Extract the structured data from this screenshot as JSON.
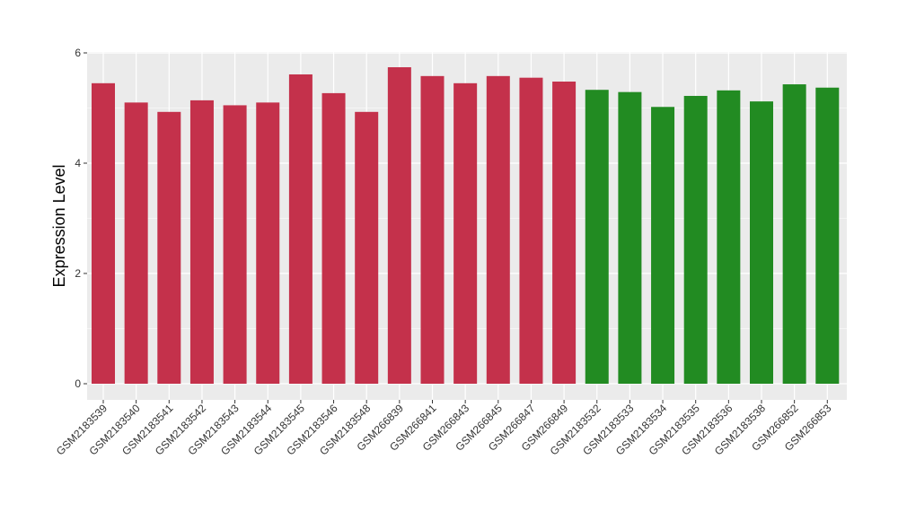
{
  "chart_data": {
    "type": "bar",
    "title": "",
    "xlabel": "",
    "ylabel": "Expression Level",
    "ylim": [
      0,
      6.05
    ],
    "yticks": [
      0,
      2,
      4,
      6
    ],
    "grid": true,
    "colors": {
      "group_a": "#C4314B",
      "group_b": "#228B22",
      "panel_bg": "#EBEBEB",
      "grid": "#FFFFFF"
    },
    "categories": [
      "GSM2183539",
      "GSM2183540",
      "GSM2183541",
      "GSM2183542",
      "GSM2183543",
      "GSM2183544",
      "GSM2183545",
      "GSM2183546",
      "GSM2183548",
      "GSM266839",
      "GSM266841",
      "GSM266843",
      "GSM266845",
      "GSM266847",
      "GSM266849",
      "GSM2183532",
      "GSM2183533",
      "GSM2183534",
      "GSM2183535",
      "GSM2183536",
      "GSM2183538",
      "GSM266852",
      "GSM266853"
    ],
    "values": [
      5.45,
      5.1,
      4.93,
      5.14,
      5.05,
      5.1,
      5.61,
      5.27,
      4.93,
      5.74,
      5.58,
      5.45,
      5.58,
      5.55,
      5.48,
      5.33,
      5.29,
      5.02,
      5.22,
      5.32,
      5.12,
      5.43,
      5.37
    ],
    "groups": [
      "a",
      "a",
      "a",
      "a",
      "a",
      "a",
      "a",
      "a",
      "a",
      "a",
      "a",
      "a",
      "a",
      "a",
      "a",
      "b",
      "b",
      "b",
      "b",
      "b",
      "b",
      "b",
      "b"
    ]
  }
}
